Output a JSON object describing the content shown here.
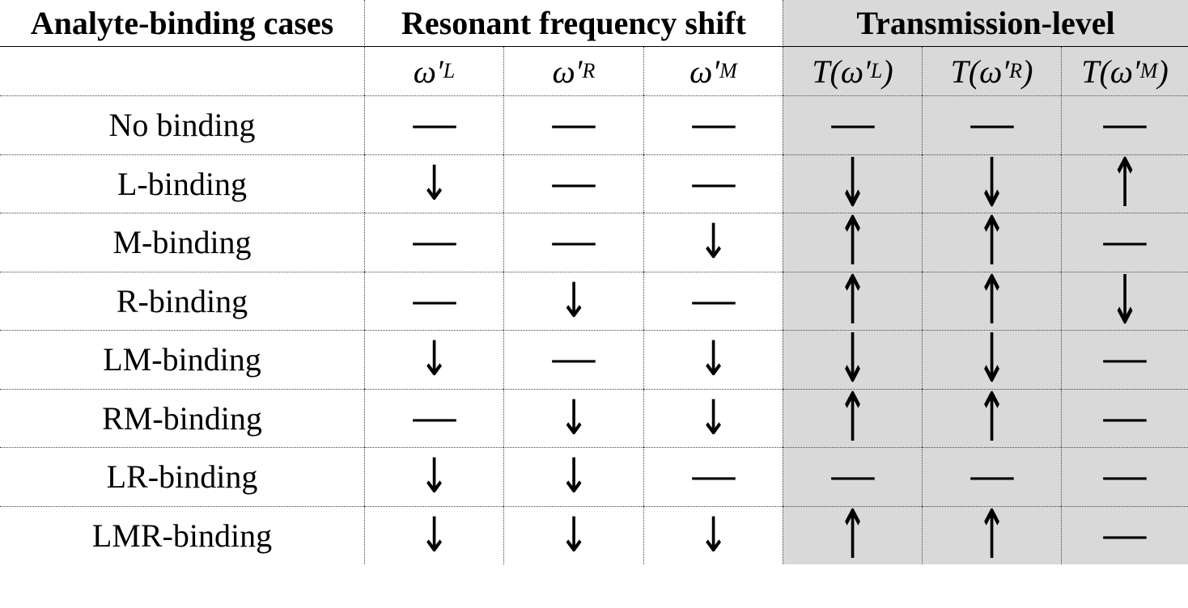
{
  "table": {
    "groups": [
      "Analyte-binding cases",
      "Resonant frequency shift",
      "Transmission-level"
    ],
    "columns": [
      {
        "base": "ω′",
        "sub": "L"
      },
      {
        "base": "ω′",
        "sub": "R"
      },
      {
        "base": "ω′",
        "sub": "M"
      },
      {
        "pre": "T(",
        "base": "ω′",
        "sub": "L",
        "post": ")"
      },
      {
        "pre": "T(",
        "base": "ω′",
        "sub": "R",
        "post": ")"
      },
      {
        "pre": "T(",
        "base": "ω′",
        "sub": "M",
        "post": ")"
      }
    ],
    "rows": [
      [
        "No binding",
        "—",
        "—",
        "—",
        "—",
        "—",
        "—"
      ],
      [
        "L-binding",
        "↓",
        "—",
        "—",
        "↓",
        "↓",
        "↑"
      ],
      [
        "M-binding",
        "—",
        "—",
        "↓",
        "↑",
        "↑",
        "—"
      ],
      [
        "R-binding",
        "—",
        "↓",
        "—",
        "↑",
        "↑",
        "↓"
      ],
      [
        "LM-binding",
        "↓",
        "—",
        "↓",
        "↓",
        "↓",
        "—"
      ],
      [
        "RM-binding",
        "—",
        "↓",
        "↓",
        "↑",
        "↑",
        "—"
      ],
      [
        "LR-binding",
        "↓",
        "↓",
        "—",
        "—",
        "—",
        "—"
      ],
      [
        "LMR-binding",
        "↓",
        "↓",
        "↓",
        "↑",
        "↑",
        "—"
      ]
    ]
  }
}
